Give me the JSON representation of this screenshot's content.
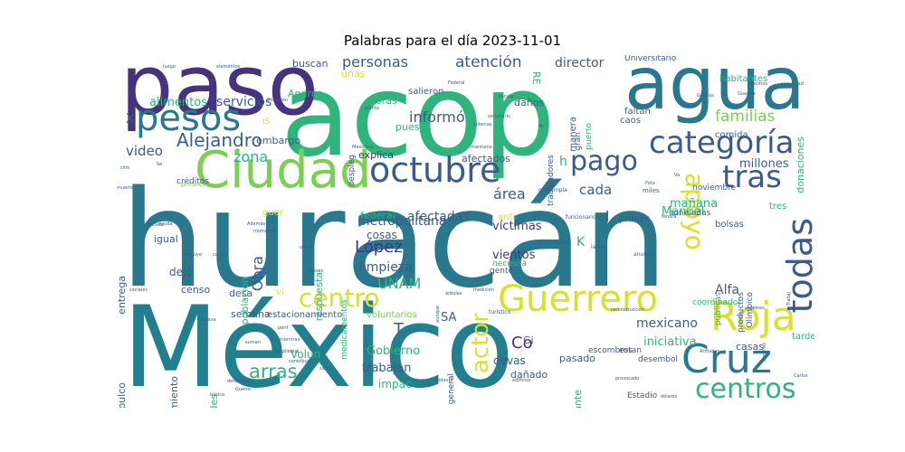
{
  "title": "Palabras para el día 2023-11-01",
  "colors": {
    "dark_purple": "#45337d",
    "blue": "#3c5b8b",
    "teal": "#2a788e",
    "green": "#2fb47c",
    "light_green": "#7ad151",
    "yellow": "#d6e22b"
  },
  "words": [
    {
      "text": "huracán",
      "color": "#2a788e"
    },
    {
      "text": "México",
      "color": "#217f8e"
    },
    {
      "text": "acop",
      "color": "#2fb47c"
    },
    {
      "text": "paso",
      "color": "#45337d"
    },
    {
      "text": "agua",
      "color": "#2a788e"
    },
    {
      "text": "Ciudad",
      "color": "#7ad151"
    },
    {
      "text": "pesos",
      "color": "#2a788e"
    },
    {
      "text": "octubre",
      "color": "#3c5b8b"
    },
    {
      "text": "categoría",
      "color": "#3c5b8b"
    },
    {
      "text": "Guerrero",
      "color": "#d6e22b"
    },
    {
      "text": "Roja",
      "color": "#d6e22b"
    },
    {
      "text": "Cruz",
      "color": "#2a788e"
    },
    {
      "text": "todas",
      "color": "#3c5b8b"
    },
    {
      "text": "tras",
      "color": "#3c5b8b"
    },
    {
      "text": "apoyo",
      "color": "#d6e22b"
    },
    {
      "text": "centros",
      "color": "#2fb47c"
    },
    {
      "text": "centro",
      "color": "#d6e22b"
    },
    {
      "text": "actor",
      "color": "#d6e22b"
    },
    {
      "text": "pago",
      "color": "#3c5b8b"
    },
    {
      "text": "Alejandro",
      "color": "#3c5b8b"
    },
    {
      "text": "familias",
      "color": "#7ad151"
    },
    {
      "text": "arras",
      "color": "#2fb47c"
    },
    {
      "text": "atención",
      "color": "#3c5b8b"
    },
    {
      "text": "personas",
      "color": "#3c5b8b"
    },
    {
      "text": "UNAM",
      "color": "#2fb47c"
    },
    {
      "text": "López",
      "color": "#45337d"
    },
    {
      "text": "zona",
      "color": "#2fb47c"
    },
    {
      "text": "video",
      "color": "#3c5b8b"
    },
    {
      "text": "servicios",
      "color": "#3c5b8b"
    },
    {
      "text": "alimentos",
      "color": "#2fb47c"
    },
    {
      "text": "director",
      "color": "#3c5b8b"
    },
    {
      "text": "informó",
      "color": "#3c5b8b"
    },
    {
      "text": "metropolitana",
      "color": "#3c5b8b"
    },
    {
      "text": "limpieza",
      "color": "#3c5b8b"
    },
    {
      "text": "víctimas",
      "color": "#45337d"
    },
    {
      "text": "vientos",
      "color": "#45337d"
    },
    {
      "text": "área",
      "color": "#3c5b8b"
    },
    {
      "text": "cada",
      "color": "#3c5b8b"
    },
    {
      "text": "afectadas",
      "color": "#3c5b8b"
    },
    {
      "text": "millones",
      "color": "#3c5b8b"
    },
    {
      "text": "mañana",
      "color": "#2fb47c"
    },
    {
      "text": "Manuel",
      "color": "#2fb47c"
    },
    {
      "text": "Alfa",
      "color": "#3c5b8b"
    },
    {
      "text": "mexicano",
      "color": "#3c5b8b"
    },
    {
      "text": "iniciativa",
      "color": "#2fb47c"
    },
    {
      "text": "casas",
      "color": "#3c5b8b"
    },
    {
      "text": "Co",
      "color": "#45337d"
    },
    {
      "text": "Gobierno",
      "color": "#2fb47c"
    },
    {
      "text": "trabajan",
      "color": "#3c5b8b"
    },
    {
      "text": "devas",
      "color": "#3c5b8b"
    },
    {
      "text": "pasado",
      "color": "#3c5b8b"
    },
    {
      "text": "dañado",
      "color": "#3c5b8b"
    },
    {
      "text": "impac",
      "color": "#2fb47c"
    },
    {
      "text": "Volun",
      "color": "#2fb47c"
    },
    {
      "text": "semana",
      "color": "#3c5b8b"
    },
    {
      "text": "estacionamiento",
      "color": "#3c5b8b"
    },
    {
      "text": "voluntarios",
      "color": "#7ad151"
    },
    {
      "text": "desa",
      "color": "#3c5b8b"
    },
    {
      "text": "censo",
      "color": "#3c5b8b"
    },
    {
      "text": "dejó",
      "color": "#3c5b8b"
    },
    {
      "text": "igual",
      "color": "#3c5b8b"
    },
    {
      "text": "población",
      "color": "#2fb47c"
    },
    {
      "text": "entrega",
      "color": "#3c5b8b"
    },
    {
      "text": "cosas",
      "color": "#3c5b8b"
    },
    {
      "text": "Obra",
      "color": "#3c5b8b"
    },
    {
      "text": "embargo",
      "color": "#3c5b8b"
    },
    {
      "text": "explica",
      "color": "#45337d"
    },
    {
      "text": "afectados",
      "color": "#3c5b8b"
    },
    {
      "text": "federal",
      "color": "#2fb47c"
    },
    {
      "text": "toneladas",
      "color": "#3c5b8b"
    },
    {
      "text": "noviembre",
      "color": "#3c5b8b"
    },
    {
      "text": "comida",
      "color": "#3c5b8b"
    },
    {
      "text": "caos",
      "color": "#3c5b8b"
    },
    {
      "text": "faltan",
      "color": "#3c5b8b"
    },
    {
      "text": "habitantes",
      "color": "#2fb47c"
    },
    {
      "text": "Universitario",
      "color": "#3c5b8b"
    },
    {
      "text": "buscan",
      "color": "#3c5b8b"
    },
    {
      "text": "unas",
      "color": "#d6e22b"
    },
    {
      "text": "Andrés",
      "color": "#2fb47c"
    },
    {
      "text": "horas",
      "color": "#2fb47c"
    },
    {
      "text": "daños",
      "color": "#3c5b8b"
    },
    {
      "text": "puesto",
      "color": "#2fb47c"
    },
    {
      "text": "salieron",
      "color": "#3c5b8b"
    },
    {
      "text": "manera",
      "color": "#3c5b8b"
    },
    {
      "text": "primer",
      "color": "#3c5b8b"
    },
    {
      "text": "gente",
      "color": "#3c5b8b"
    },
    {
      "text": "necesita",
      "color": "#2fb47c"
    },
    {
      "text": "bolsas",
      "color": "#3c5b8b"
    },
    {
      "text": "tres",
      "color": "#2fb47c"
    },
    {
      "text": "tarde",
      "color": "#2fb47c"
    },
    {
      "text": "Estadio",
      "color": "#3c5b8b"
    },
    {
      "text": "dejar Acapulco",
      "color": "#3c5b8b"
    },
    {
      "text": "autoridades",
      "color": "#2fb47c"
    },
    {
      "text": "llamamiento",
      "color": "#3c5b8b"
    },
    {
      "text": "respuesta",
      "color": "#2fb47c"
    },
    {
      "text": "medicamentos",
      "color": "#2fb47c"
    },
    {
      "text": "general",
      "color": "#3c5b8b"
    },
    {
      "text": "importante",
      "color": "#2fb47c"
    },
    {
      "text": "productos",
      "color": "#3c5b8b"
    },
    {
      "text": "Olímpico",
      "color": "#3c5b8b"
    },
    {
      "text": "públicas",
      "color": "#2fb47c"
    },
    {
      "text": "coordinador",
      "color": "#2fb47c"
    },
    {
      "text": "donaciones",
      "color": "#2fb47c"
    },
    {
      "text": "despleg",
      "color": "#3c5b8b"
    },
    {
      "text": "trabajadores",
      "color": "#3c5b8b"
    },
    {
      "text": "gran",
      "color": "#3c5b8b"
    },
    {
      "text": "puerto",
      "color": "#2fb47c"
    },
    {
      "text": "escombros",
      "color": "#3c5b8b"
    },
    {
      "text": "estan",
      "color": "#3c5b8b"
    },
    {
      "text": "desembol",
      "color": "#3c5b8b"
    },
    {
      "text": "créditos",
      "color": "#3c5b8b"
    },
    {
      "text": "primeros",
      "color": "#7ad151"
    },
    {
      "text": "contempla",
      "color": "#3c5b8b"
    },
    {
      "text": "miles",
      "color": "#3c5b8b"
    },
    {
      "text": "SA",
      "color": "#3c5b8b"
    },
    {
      "text": "T",
      "color": "#3c5b8b"
    },
    {
      "text": "K",
      "color": "#2fb47c"
    },
    {
      "text": "J",
      "color": "#3c5b8b"
    },
    {
      "text": "h",
      "color": "#2fb47c"
    },
    {
      "text": "X",
      "color": "#3c5b8b"
    },
    {
      "text": "RE",
      "color": "#2fb47c"
    },
    {
      "text": "Gi",
      "color": "#3c5b8b"
    },
    {
      "text": "IS",
      "color": "#d6e22b"
    },
    {
      "text": "anti",
      "color": "#d6e22b"
    },
    {
      "text": "guer",
      "color": "#d6e22b"
    },
    {
      "text": "vi",
      "color": "#d6e22b"
    },
    {
      "text": "conferencia",
      "color": "#3c5b8b"
    },
    {
      "text": "funcionarios",
      "color": "#3c5b8b"
    },
    {
      "text": "labor",
      "color": "#3c5b8b"
    },
    {
      "text": "anunció",
      "color": "#3c5b8b"
    },
    {
      "text": "reconstrucción",
      "color": "#3c5b8b"
    },
    {
      "text": "turístico",
      "color": "#3c5b8b"
    },
    {
      "text": "medición",
      "color": "#3c5b8b"
    },
    {
      "text": "árboles",
      "color": "#3c5b8b"
    },
    {
      "text": "sociales",
      "color": "#3c5b8b"
    },
    {
      "text": "Además",
      "color": "#3c5b8b"
    },
    {
      "text": "momento",
      "color": "#3c5b8b"
    },
    {
      "text": "básica",
      "color": "#3c5b8b"
    },
    {
      "text": "dólares",
      "color": "#3c5b8b"
    },
    {
      "text": "edificios",
      "color": "#3c5b8b"
    },
    {
      "text": "Todavía",
      "color": "#3c5b8b"
    },
    {
      "text": "Mexicana",
      "color": "#3c5b8b"
    },
    {
      "text": "mantiene",
      "color": "#3c5b8b"
    },
    {
      "text": "secretario",
      "color": "#3c5b8b"
    },
    {
      "text": "colonias",
      "color": "#3c5b8b"
    },
    {
      "text": "escala",
      "color": "#3c5b8b"
    },
    {
      "text": "Federal",
      "color": "#3c5b8b"
    },
    {
      "text": "Gracias",
      "color": "#3c5b8b"
    },
    {
      "text": "elementos",
      "color": "#3c5b8b"
    },
    {
      "text": "luego",
      "color": "#3c5b8b"
    },
    {
      "text": "Comisión",
      "color": "#3c5b8b"
    },
    {
      "text": "planta",
      "color": "#3c5b8b"
    },
    {
      "text": "provocado",
      "color": "#3c5b8b"
    },
    {
      "text": "Armadas",
      "color": "#3c5b8b"
    },
    {
      "text": "Ramírez",
      "color": "#3c5b8b"
    },
    {
      "text": "Carlos",
      "color": "#3c5b8b"
    },
    {
      "text": "acciones",
      "color": "#3c5b8b"
    },
    {
      "text": "Trabaj",
      "color": "#3c5b8b"
    },
    {
      "text": "meses",
      "color": "#3c5b8b"
    },
    {
      "text": "oficial",
      "color": "#3c5b8b"
    },
    {
      "text": "aunque",
      "color": "#3c5b8b"
    },
    {
      "text": "Guerro",
      "color": "#3c5b8b"
    },
    {
      "text": "suman",
      "color": "#3c5b8b"
    },
    {
      "text": "mientras",
      "color": "#3c5b8b"
    },
    {
      "text": "perif",
      "color": "#3c5b8b"
    },
    {
      "text": "despliegue",
      "color": "#3c5b8b"
    },
    {
      "text": "contribuir",
      "color": "#3c5b8b"
    },
    {
      "text": "nueva",
      "color": "#3c5b8b"
    },
    {
      "text": "muerte",
      "color": "#3c5b8b"
    },
    {
      "text": "clim",
      "color": "#3c5b8b"
    },
    {
      "text": "Se",
      "color": "#3c5b8b"
    },
    {
      "text": "Va",
      "color": "#3c5b8b"
    },
    {
      "text": "Foto",
      "color": "#3c5b8b"
    },
    {
      "text": "tendrá",
      "color": "#3c5b8b"
    },
    {
      "text": "vecinos",
      "color": "#3c5b8b"
    },
    {
      "text": "seguridad",
      "color": "#3c5b8b"
    },
    {
      "text": "Guardia",
      "color": "#3c5b8b"
    },
    {
      "text": "fin",
      "color": "#3c5b8b"
    },
    {
      "text": "ayuda",
      "color": "#3c5b8b"
    },
    {
      "text": "enviado",
      "color": "#3c5b8b"
    },
    {
      "text": "incluye",
      "color": "#3c5b8b"
    },
    {
      "text": "cuenta",
      "color": "#3c5b8b"
    },
    {
      "text": "defensiva",
      "color": "#3c5b8b"
    },
    {
      "text": "sido",
      "color": "#3c5b8b"
    },
    {
      "text": "extra",
      "color": "#3c5b8b"
    },
    {
      "text": "fa",
      "color": "#3c5b8b"
    },
    {
      "text": "viaje",
      "color": "#3c5b8b"
    },
    {
      "text": "puertas",
      "color": "#3c5b8b"
    },
    {
      "text": "embajada",
      "color": "#3c5b8b"
    },
    {
      "text": "refugio",
      "color": "#3c5b8b"
    }
  ]
}
